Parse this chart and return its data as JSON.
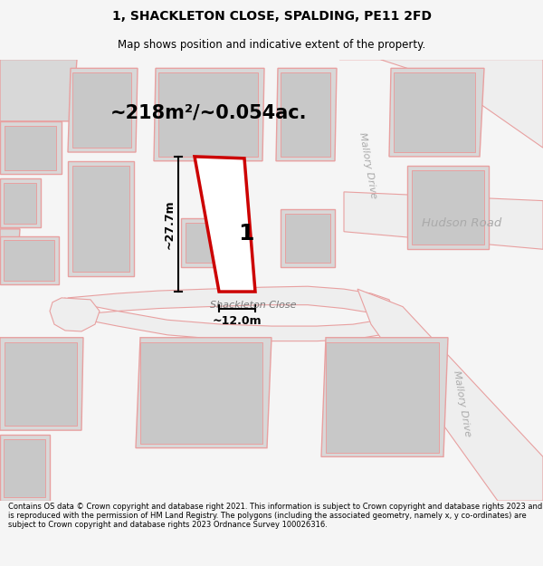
{
  "title_line1": "1, SHACKLETON CLOSE, SPALDING, PE11 2FD",
  "title_line2": "Map shows position and indicative extent of the property.",
  "area_label": "~218m²/~0.054ac.",
  "plot_number": "1",
  "dim_height": "~27.7m",
  "dim_width": "~12.0m",
  "street_label": "Shackleton Close",
  "road_label_v1": "Mallory Drive",
  "road_label_v2": "Mallory Drive",
  "road_label_h": "Hudson Road",
  "footer_text": "Contains OS data © Crown copyright and database right 2021. This information is subject to Crown copyright and database rights 2023 and is reproduced with the permission of HM Land Registry. The polygons (including the associated geometry, namely x, y co-ordinates) are subject to Crown copyright and database rights 2023 Ordnance Survey 100026316.",
  "bg_color": "#f5f5f5",
  "map_bg": "#ffffff",
  "road_fill": "#eeeeee",
  "building_fill": "#d8d8d8",
  "outline_color": "#e8a0a0",
  "highlight_color": "#cc0000",
  "text_color": "#333333",
  "road_text_color": "#aaaaaa",
  "title_fontsize": 10,
  "subtitle_fontsize": 8.5,
  "area_fontsize": 16,
  "footer_fontsize": 6.0
}
